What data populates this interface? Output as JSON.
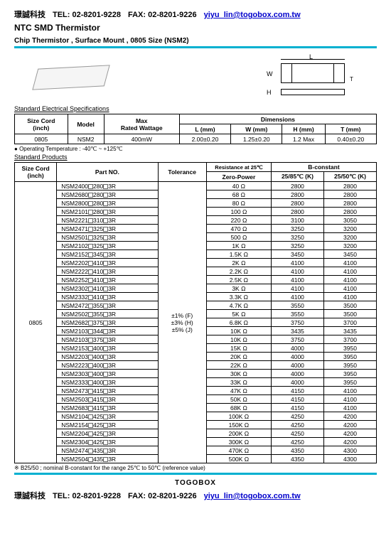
{
  "header": {
    "company": "璟誠科技",
    "tel_label": "TEL: 02-8201-9228",
    "fax_label": "FAX: 02-8201-9226",
    "email": "yiyu_lin@togobox.com.tw"
  },
  "title": "NTC SMD Thermistor",
  "subtitle": "Chip Thermistor , Surface Mount , 0805 Size   (NSM2)",
  "dim_labels": {
    "L": "L",
    "W": "W",
    "H": "H",
    "T": "T"
  },
  "spec_section_label": "Standard Electrical Specifications",
  "spec_table": {
    "headers": {
      "size_cord": "Size Cord",
      "size_cord_sub": "(inch)",
      "model": "Model",
      "max": "Max",
      "rated_wattage": "Rated Wattage",
      "dimensions": "Dimensions",
      "L": "L (mm)",
      "W": "W (mm)",
      "H": "H (mm)",
      "T": "T (mm)"
    },
    "row": {
      "size": "0805",
      "model": "NSM2",
      "wattage": "400mW",
      "L": "2.00±0.20",
      "W": "1.25±0.20",
      "H": "1.2 Max",
      "T": "0.40±0.20"
    }
  },
  "op_temp_note": "Operating Temperature : -40℃ ~ +125℃",
  "prod_section_label": "Standard Products",
  "prod_table": {
    "headers": {
      "size_cord": "Size Cord",
      "size_cord_sub": "(inch)",
      "part_no": "Part NO.",
      "tolerance": "Tolerance",
      "resistance": "Resistance at 25℃",
      "zero_power": "Zero-Power",
      "b_constant": "B-constant",
      "b2585": "25/85℃ (K)",
      "b2550": "25/50℃ (K)"
    },
    "size": "0805",
    "tolerance_lines": [
      "±1% (F)",
      "±3% (H)",
      "±5% (J)"
    ],
    "rows": [
      {
        "pn": "NSM2400□280□3R",
        "r": "40 Ω",
        "b85": "2800",
        "b50": "2800"
      },
      {
        "pn": "NSM2680□280□3R",
        "r": "68 Ω",
        "b85": "2800",
        "b50": "2800"
      },
      {
        "pn": "NSM2800□280□3R",
        "r": "80 Ω",
        "b85": "2800",
        "b50": "2800"
      },
      {
        "pn": "NSM2101□280□3R",
        "r": "100 Ω",
        "b85": "2800",
        "b50": "2800"
      },
      {
        "pn": "NSM2221□310□3R",
        "r": "220 Ω",
        "b85": "3100",
        "b50": "3050"
      },
      {
        "pn": "NSM2471□325□3R",
        "r": "470 Ω",
        "b85": "3250",
        "b50": "3200"
      },
      {
        "pn": "NSM2501□325□3R",
        "r": "500 Ω",
        "b85": "3250",
        "b50": "3200"
      },
      {
        "pn": "NSM2102□325□3R",
        "r": "1K Ω",
        "b85": "3250",
        "b50": "3200"
      },
      {
        "pn": "NSM2152□345□3R",
        "r": "1.5K Ω",
        "b85": "3450",
        "b50": "3450"
      },
      {
        "pn": "NSM2202□410□3R",
        "r": "2K Ω",
        "b85": "4100",
        "b50": "4100"
      },
      {
        "pn": "NSM2222□410□3R",
        "r": "2.2K Ω",
        "b85": "4100",
        "b50": "4100"
      },
      {
        "pn": "NSM2252□410□3R",
        "r": "2.5K Ω",
        "b85": "4100",
        "b50": "4100"
      },
      {
        "pn": "NSM2302□410□3R",
        "r": "3K Ω",
        "b85": "4100",
        "b50": "4100"
      },
      {
        "pn": "NSM2332□410□3R",
        "r": "3.3K Ω",
        "b85": "4100",
        "b50": "4100"
      },
      {
        "pn": "NSM2472□355□3R",
        "r": "4.7K Ω",
        "b85": "3550",
        "b50": "3500"
      },
      {
        "pn": "NSM2502□355□3R",
        "r": "5K Ω",
        "b85": "3550",
        "b50": "3500"
      },
      {
        "pn": "NSM2682□375□3R",
        "r": "6.8K Ω",
        "b85": "3750",
        "b50": "3700"
      },
      {
        "pn": "NSM2103□344□3R",
        "r": "10K Ω",
        "b85": "3435",
        "b50": "3435"
      },
      {
        "pn": "NSM2103□375□3R",
        "r": "10K Ω",
        "b85": "3750",
        "b50": "3700"
      },
      {
        "pn": "NSM2153□400□3R",
        "r": "15K Ω",
        "b85": "4000",
        "b50": "3950"
      },
      {
        "pn": "NSM2203□400□3R",
        "r": "20K Ω",
        "b85": "4000",
        "b50": "3950"
      },
      {
        "pn": "NSM2223□400□3R",
        "r": "22K Ω",
        "b85": "4000",
        "b50": "3950"
      },
      {
        "pn": "NSM2303□400□3R",
        "r": "30K Ω",
        "b85": "4000",
        "b50": "3950"
      },
      {
        "pn": "NSM2333□400□3R",
        "r": "33K Ω",
        "b85": "4000",
        "b50": "3950"
      },
      {
        "pn": "NSM2473□415□3R",
        "r": "47K Ω",
        "b85": "4150",
        "b50": "4100"
      },
      {
        "pn": "NSM2503□415□3R",
        "r": "50K Ω",
        "b85": "4150",
        "b50": "4100"
      },
      {
        "pn": "NSM2683□415□3R",
        "r": "68K Ω",
        "b85": "4150",
        "b50": "4100"
      },
      {
        "pn": "NSM2104□425□3R",
        "r": "100K Ω",
        "b85": "4250",
        "b50": "4200"
      },
      {
        "pn": "NSM2154□425□3R",
        "r": "150K Ω",
        "b85": "4250",
        "b50": "4200"
      },
      {
        "pn": "NSM2204□425□3R",
        "r": "200K Ω",
        "b85": "4250",
        "b50": "4200"
      },
      {
        "pn": "NSM2304□425□3R",
        "r": "300K Ω",
        "b85": "4250",
        "b50": "4200"
      },
      {
        "pn": "NSM2474□435□3R",
        "r": "470K Ω",
        "b85": "4350",
        "b50": "4300"
      },
      {
        "pn": "NSM2504□435□3R",
        "r": "500K Ω",
        "b85": "4350",
        "b50": "4300"
      }
    ]
  },
  "b_note": "B25/50 ; nominal B-constant for the range 25℃ to 50℃ (reference value)",
  "footer_brand": "TOGOBOX"
}
